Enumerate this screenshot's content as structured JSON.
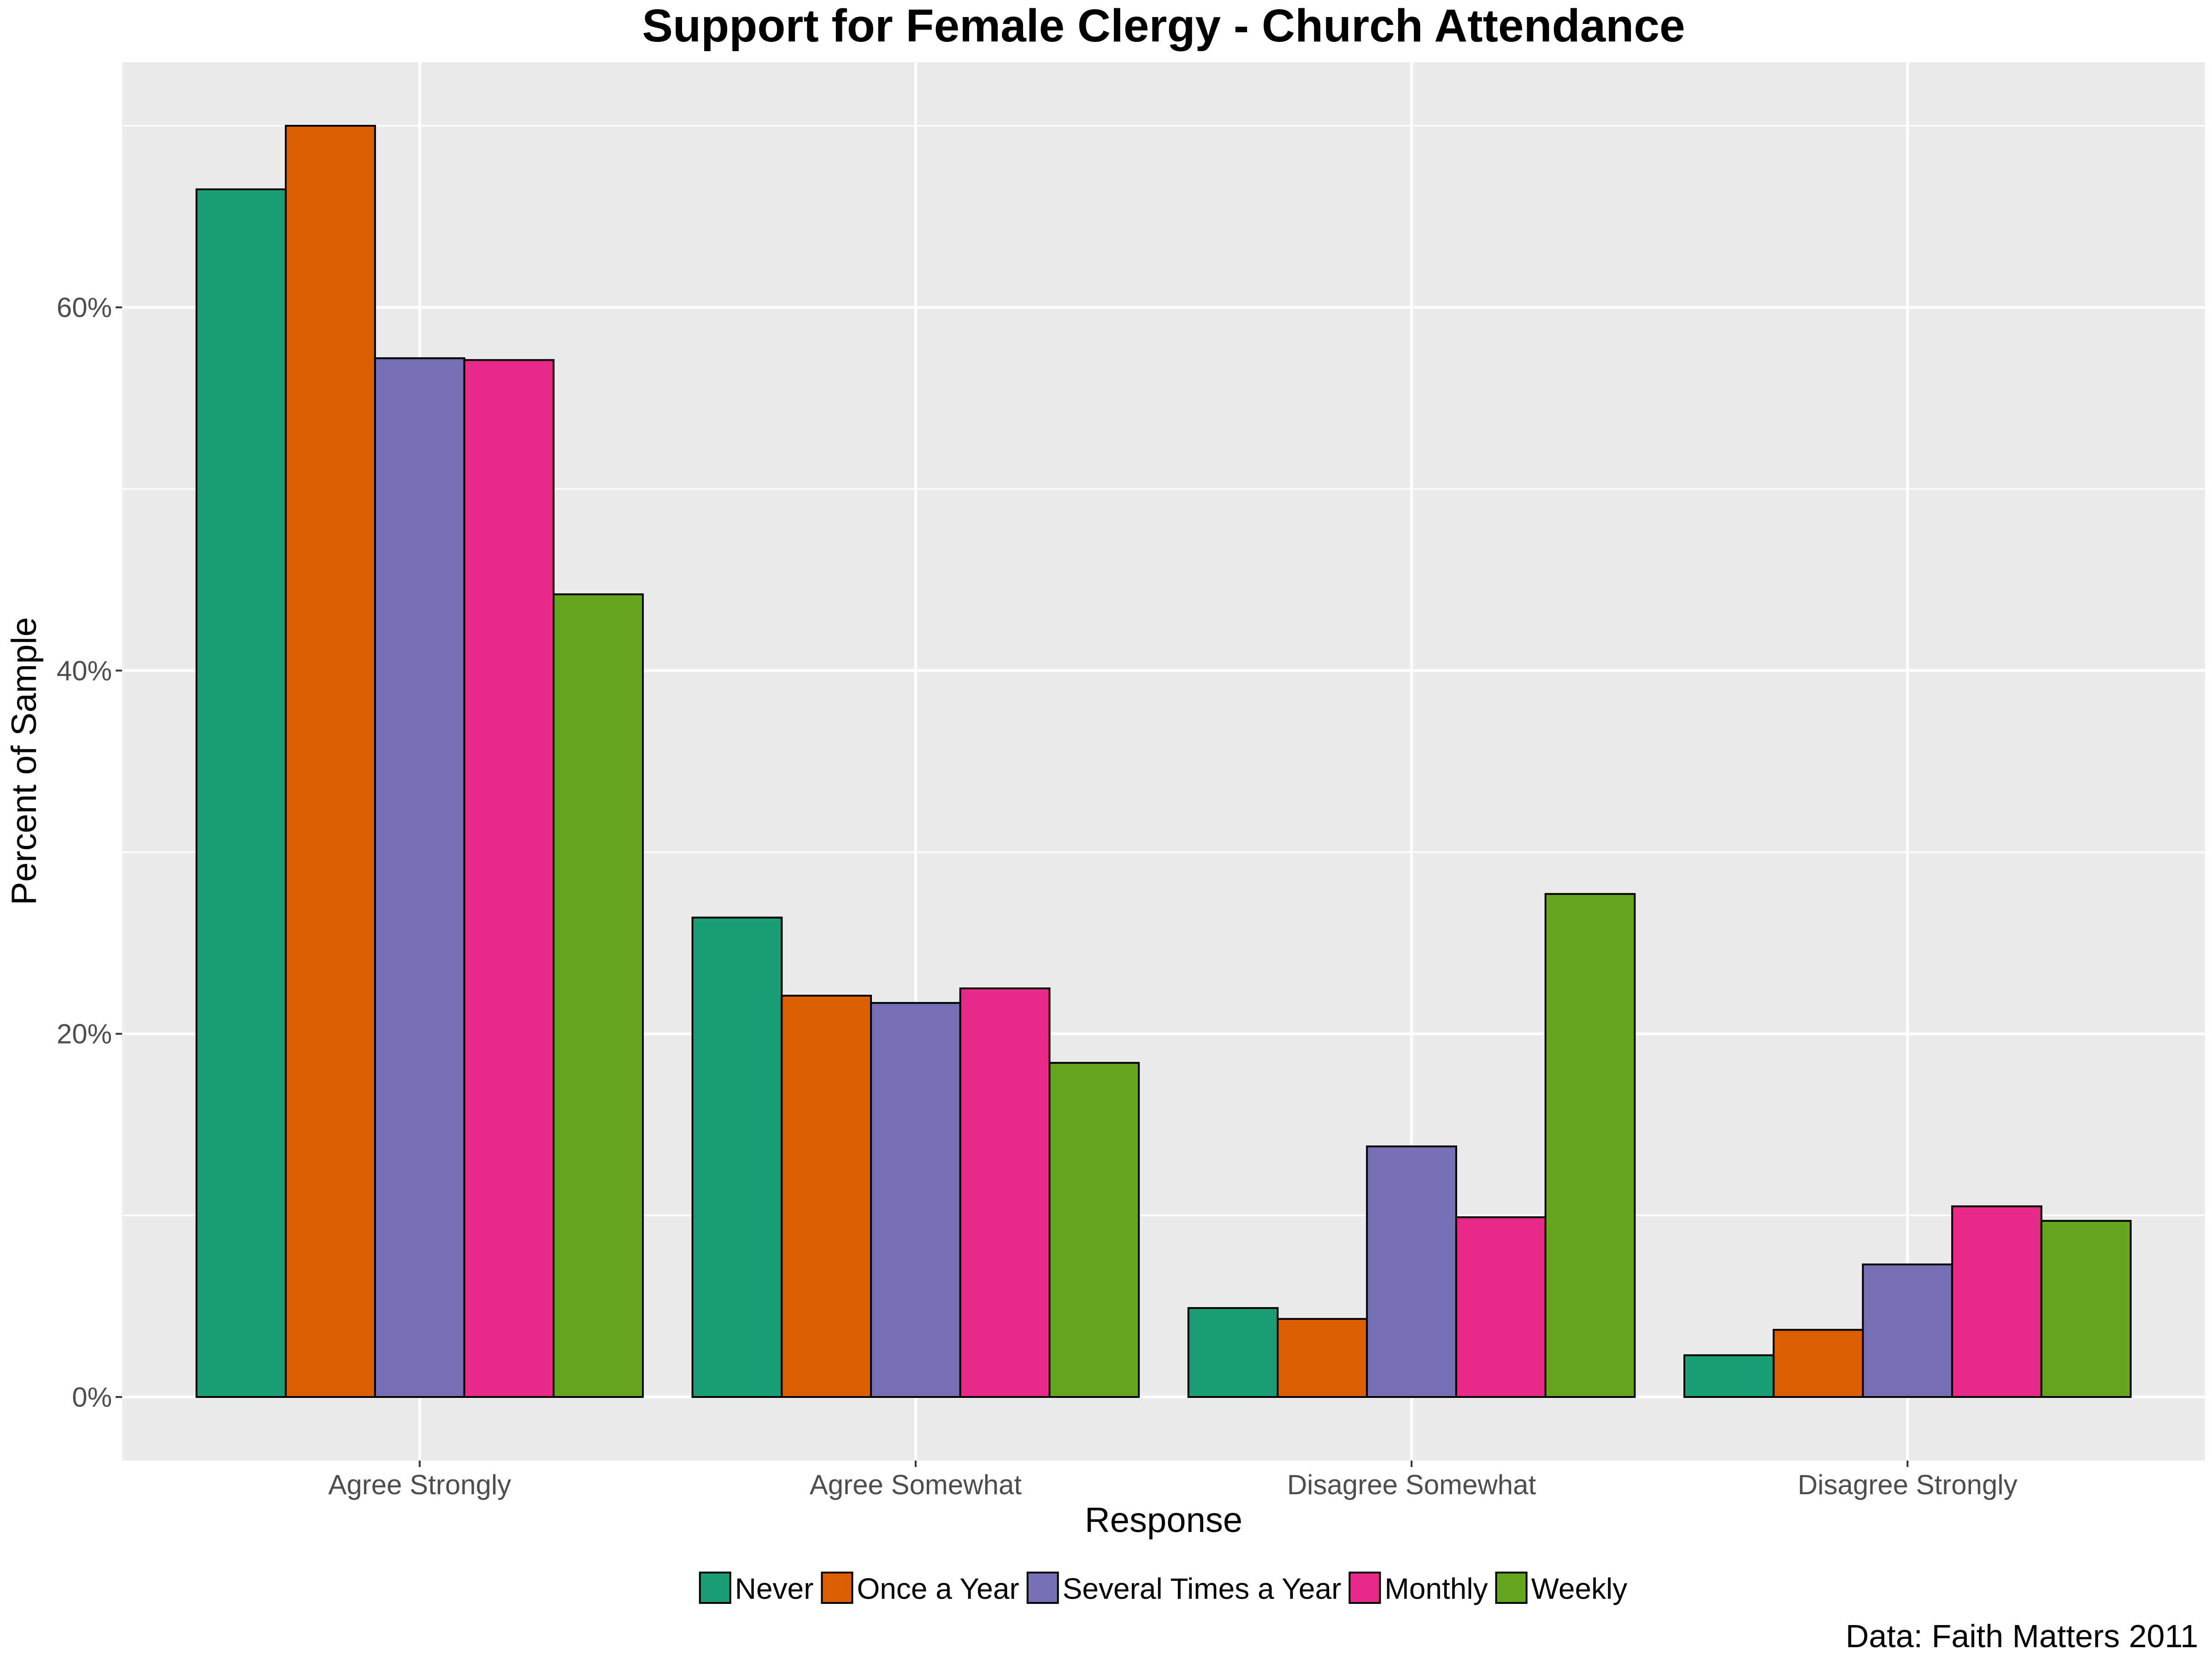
{
  "chart_data": {
    "type": "bar",
    "title": "Support for Female Clergy - Church Attendance",
    "xlabel": "Response",
    "ylabel": "Percent of Sample",
    "caption": "Data: Faith Matters 2011",
    "categories": [
      "Agree Strongly",
      "Agree Somewhat",
      "Disagree Somewhat",
      "Disagree Strongly"
    ],
    "series": [
      {
        "name": "Never",
        "color": "#1b9e77",
        "values": [
          66.5,
          26.4,
          4.9,
          2.3
        ]
      },
      {
        "name": "Once a Year",
        "color": "#d95f02",
        "values": [
          70.0,
          22.1,
          4.3,
          3.7
        ]
      },
      {
        "name": "Several Times a Year",
        "color": "#7570b3",
        "values": [
          57.2,
          21.7,
          13.8,
          7.3
        ]
      },
      {
        "name": "Monthly",
        "color": "#e7298a",
        "values": [
          57.1,
          22.5,
          9.9,
          10.5
        ]
      },
      {
        "name": "Weekly",
        "color": "#66a61e",
        "values": [
          44.2,
          18.4,
          27.7,
          9.7
        ]
      }
    ],
    "yticks": [
      0,
      20,
      40,
      60
    ],
    "ytick_labels": [
      "0%",
      "20%",
      "40%",
      "60%"
    ],
    "ylim": [
      -3.5,
      73.5
    ],
    "grid": true,
    "legend_position": "bottom"
  }
}
